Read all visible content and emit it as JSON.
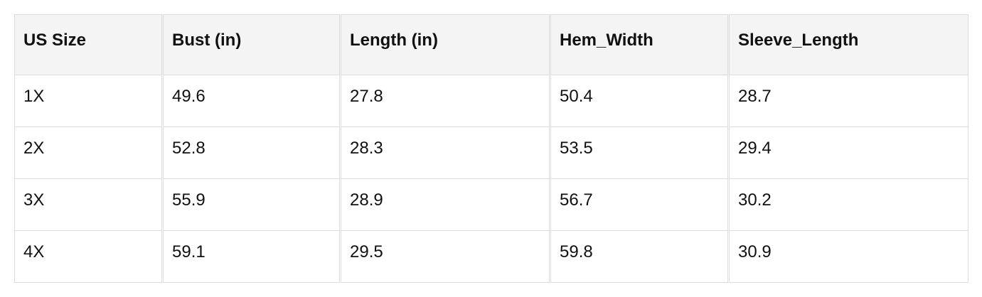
{
  "table": {
    "headers": [
      "US Size",
      "Bust (in)",
      "Length (in)",
      "Hem_Width",
      "Sleeve_Length"
    ],
    "rows": [
      [
        "1X",
        "49.6",
        "27.8",
        "50.4",
        "28.7"
      ],
      [
        "2X",
        "52.8",
        "28.3",
        "53.5",
        "29.4"
      ],
      [
        "3X",
        "55.9",
        "28.9",
        "56.7",
        "30.2"
      ],
      [
        "4X",
        "59.1",
        "29.5",
        "59.8",
        "30.9"
      ]
    ]
  }
}
